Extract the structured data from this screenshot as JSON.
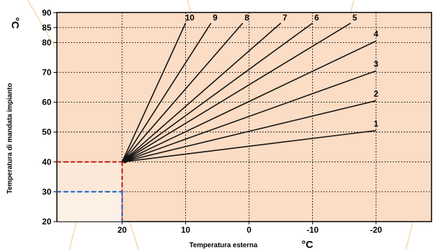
{
  "chart_data": {
    "type": "line",
    "title": "",
    "xlabel": "Temperatura esterna",
    "xunit": "°C",
    "ylabel": "Temperatura di mandata impianto",
    "yunit": "°C",
    "xlim": [
      30,
      -30
    ],
    "ylim": [
      20,
      90
    ],
    "x_ticks": [
      20,
      10,
      0,
      -10,
      -20
    ],
    "x_tick_labels": [
      "20",
      "10",
      "0",
      "-10",
      "-20"
    ],
    "y_ticks": [
      20,
      30,
      40,
      50,
      60,
      70,
      80,
      85,
      90
    ],
    "y_tick_labels": [
      "20",
      "30",
      "40",
      "50",
      "60",
      "70",
      "80",
      "85",
      "90"
    ],
    "grid": true,
    "background_color": "#fbdcc4",
    "line_color": "#111111",
    "origin": {
      "x": 20,
      "y": 40
    },
    "series": [
      {
        "name": "1",
        "x": [
          20,
          -20
        ],
        "y": [
          40,
          50.5
        ]
      },
      {
        "name": "2",
        "x": [
          20,
          -20
        ],
        "y": [
          40,
          60.5
        ]
      },
      {
        "name": "3",
        "x": [
          20,
          -20
        ],
        "y": [
          40,
          70.5
        ]
      },
      {
        "name": "4",
        "x": [
          20,
          -20
        ],
        "y": [
          40,
          80.5
        ]
      },
      {
        "name": "5",
        "x": [
          20,
          -16
        ],
        "y": [
          40,
          86.5
        ]
      },
      {
        "name": "6",
        "x": [
          20,
          -10
        ],
        "y": [
          40,
          86.5
        ]
      },
      {
        "name": "7",
        "x": [
          20,
          -5
        ],
        "y": [
          40,
          86.5
        ]
      },
      {
        "name": "8",
        "x": [
          20,
          1
        ],
        "y": [
          40,
          86.5
        ]
      },
      {
        "name": "9",
        "x": [
          20,
          6
        ],
        "y": [
          40,
          86.5
        ]
      },
      {
        "name": "10",
        "x": [
          20,
          10
        ],
        "y": [
          40,
          86.5
        ]
      }
    ],
    "markers": [
      {
        "color": "#d21f1f",
        "x": 20,
        "y": 40
      },
      {
        "color": "#1e6fd0",
        "x": 20,
        "y": 30
      }
    ]
  }
}
